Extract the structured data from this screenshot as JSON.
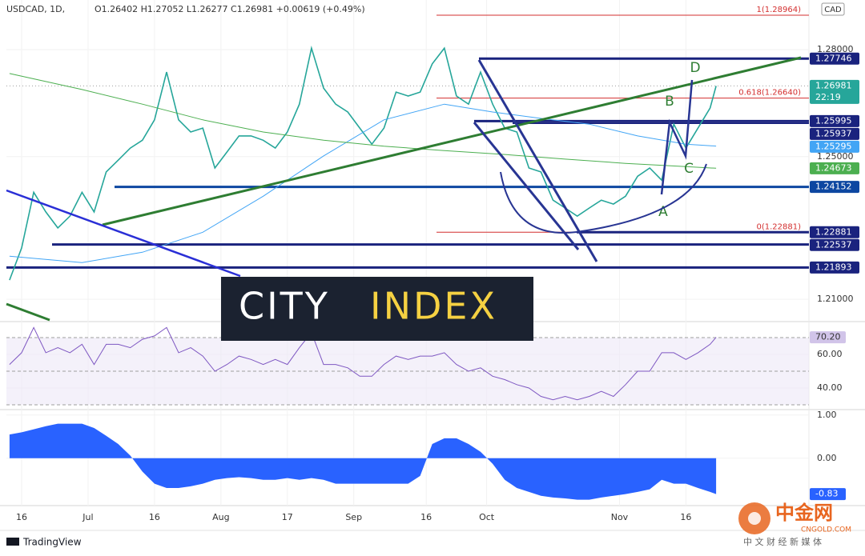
{
  "header": {
    "symbol": "USDCAD, 1D,",
    "ohlc": "O1.26402  H1.27052  L1.26277  C1.26981  +0.00619 (+0.49%)"
  },
  "watermark": {
    "left": "CITY",
    "right": "INDEX"
  },
  "footer": {
    "tradingview": "TradingView"
  },
  "cngold": {
    "name": "中金网",
    "domain": "CNGOLD.COM",
    "tagline": "中 文 财 经 新 媒 体"
  },
  "chart_data": [
    {
      "type": "line",
      "currency": "CAD",
      "countdown": "22:19",
      "ylim": [
        1.2042,
        1.2939
      ],
      "yticks": [
        {
          "value": 1.28,
          "label": "1.28000"
        },
        {
          "value": 1.25,
          "label": "1.25000"
        },
        {
          "value": 1.21,
          "label": "1.21000"
        }
      ],
      "xlim": [
        -2.52,
        130.37
      ],
      "xticks": [
        {
          "value": 0,
          "label": "16"
        },
        {
          "value": 11,
          "label": "Jul"
        },
        {
          "value": 22,
          "label": "16"
        },
        {
          "value": 33,
          "label": "Aug"
        },
        {
          "value": 44,
          "label": "17"
        },
        {
          "value": 55,
          "label": "Sep"
        },
        {
          "value": 67,
          "label": "16"
        },
        {
          "value": 77,
          "label": "Oct"
        },
        {
          "value": 99,
          "label": "Nov"
        },
        {
          "value": 110,
          "label": "16"
        }
      ],
      "x": [
        -2,
        0,
        2,
        4,
        6,
        8,
        10,
        12,
        14,
        16,
        18,
        20,
        22,
        24,
        26,
        28,
        30,
        32,
        34,
        36,
        38,
        40,
        42,
        44,
        46,
        48,
        50,
        52,
        54,
        56,
        58,
        60,
        62,
        64,
        66,
        68,
        70,
        72,
        74,
        76,
        78,
        80,
        82,
        84,
        86,
        88,
        90,
        92,
        94,
        96,
        98,
        100,
        102,
        104,
        106,
        108,
        110,
        112,
        114,
        115
      ],
      "series": [
        {
          "color": "#26a69a",
          "values": [
            1.2154,
            1.2244,
            1.24,
            1.2345,
            1.23,
            1.2333,
            1.24,
            1.2345,
            1.2457,
            1.249,
            1.2524,
            1.2546,
            1.2603,
            1.2737,
            1.2603,
            1.2569,
            1.258,
            1.2468,
            1.2513,
            1.2558,
            1.2558,
            1.2546,
            1.2524,
            1.2569,
            1.2647,
            1.2804,
            1.2692,
            1.2647,
            1.2625,
            1.258,
            1.2535,
            1.258,
            1.2681,
            1.267,
            1.2681,
            1.276,
            1.2804,
            1.267,
            1.2647,
            1.2737,
            1.2647,
            1.258,
            1.2569,
            1.2468,
            1.2457,
            1.2378,
            1.2356,
            1.2333,
            1.2356,
            1.2378,
            1.2367,
            1.2389,
            1.2445,
            1.2468,
            1.2434,
            1.2591,
            1.2524,
            1.258,
            1.2636,
            1.26981
          ]
        },
        {
          "color": "#42a5f5",
          "x": [
            -2,
            10,
            20,
            30,
            40,
            50,
            60,
            70,
            78,
            86,
            94,
            102,
            110,
            115
          ],
          "values": [
            1.2221,
            1.2203,
            1.2232,
            1.2288,
            1.2389,
            1.2502,
            1.2603,
            1.2647,
            1.2625,
            1.2607,
            1.2591,
            1.2558,
            1.2535,
            1.25295
          ]
        },
        {
          "color": "#4caf50",
          "x": [
            -2,
            10,
            20,
            30,
            40,
            50,
            60,
            70,
            80,
            90,
            100,
            110,
            115
          ],
          "values": [
            1.2733,
            1.2688,
            1.2647,
            1.2603,
            1.2569,
            1.2546,
            1.2529,
            1.2517,
            1.2506,
            1.2493,
            1.2481,
            1.2472,
            1.24673
          ]
        }
      ],
      "levels": [
        {
          "value": 1.27746,
          "color": "#1a237e"
        },
        {
          "value": 1.25995,
          "color": "#1a237e"
        },
        {
          "value": 1.25937,
          "color": "#1a237e"
        },
        {
          "value": 1.24152,
          "color": "#0d47a1"
        },
        {
          "value": 1.22881,
          "color": "#1a237e"
        },
        {
          "value": 1.22537,
          "color": "#1a237e"
        },
        {
          "value": 1.21893,
          "color": "#1a237e"
        }
      ],
      "fib": [
        {
          "value": 1.28964,
          "label": "1(1.28964)"
        },
        {
          "value": 1.2664,
          "label": "0.618(1.26640)"
        },
        {
          "value": 1.22881,
          "label": "0(1.22881)"
        }
      ],
      "annotations": [
        "A",
        "B",
        "C",
        "D"
      ]
    },
    {
      "type": "line",
      "color": "#7e57c2",
      "ylim": [
        28.1,
        78.1
      ],
      "yticks": [
        {
          "value": 60,
          "label": "60.00"
        },
        {
          "value": 40,
          "label": "40.00"
        }
      ],
      "band_lines": [
        70,
        50,
        30
      ],
      "x": [
        -2,
        0,
        2,
        4,
        6,
        8,
        10,
        12,
        14,
        16,
        18,
        20,
        22,
        24,
        26,
        28,
        30,
        32,
        34,
        36,
        38,
        40,
        42,
        44,
        46,
        48,
        50,
        52,
        54,
        56,
        58,
        60,
        62,
        64,
        66,
        68,
        70,
        72,
        74,
        76,
        78,
        80,
        82,
        84,
        86,
        88,
        90,
        92,
        94,
        96,
        98,
        100,
        102,
        104,
        106,
        108,
        110,
        112,
        114,
        115
      ],
      "values": [
        54,
        61,
        76,
        61,
        64,
        61,
        66,
        54,
        66,
        66,
        64,
        69,
        71,
        76,
        61,
        64,
        59,
        50,
        54,
        59,
        57,
        54,
        57,
        54,
        64,
        73,
        54,
        54,
        52,
        47,
        47,
        54,
        59,
        57,
        59,
        59,
        61,
        54,
        50,
        52,
        47,
        45,
        42,
        40,
        35,
        33,
        35,
        33,
        35,
        38,
        35,
        42,
        50,
        50,
        61,
        61,
        57,
        61,
        66,
        70.2
      ],
      "value_labels": [
        null,
        null,
        null,
        null,
        null,
        null,
        null,
        null,
        null,
        null,
        null,
        null,
        null,
        null,
        null,
        null,
        null,
        null,
        null,
        null,
        null,
        null,
        null,
        null,
        null,
        null,
        null,
        null,
        null,
        null,
        null,
        null,
        null,
        null,
        null,
        null,
        null,
        null,
        null,
        null,
        null,
        null,
        null,
        null,
        null,
        null,
        null,
        null,
        null,
        null,
        null,
        null,
        null,
        null,
        null,
        null,
        null,
        null,
        null,
        "70.20"
      ]
    },
    {
      "type": "area",
      "color": "#2962ff",
      "ylim": [
        -1.06,
        1.07
      ],
      "yticks": [
        {
          "value": 1,
          "label": "1.00"
        },
        {
          "value": 0,
          "label": "0.00"
        }
      ],
      "x": [
        -2,
        0,
        2,
        4,
        6,
        8,
        10,
        12,
        14,
        16,
        18,
        20,
        22,
        24,
        26,
        28,
        30,
        32,
        34,
        36,
        38,
        40,
        42,
        44,
        46,
        48,
        50,
        52,
        54,
        56,
        58,
        60,
        62,
        64,
        66,
        68,
        70,
        72,
        74,
        76,
        78,
        80,
        82,
        84,
        86,
        88,
        90,
        92,
        94,
        96,
        98,
        100,
        102,
        104,
        106,
        108,
        110,
        112,
        114,
        115
      ],
      "values": [
        0.55,
        0.6,
        0.67,
        0.74,
        0.8,
        0.8,
        0.8,
        0.7,
        0.52,
        0.33,
        0.06,
        -0.31,
        -0.59,
        -0.69,
        -0.69,
        -0.65,
        -0.59,
        -0.5,
        -0.46,
        -0.44,
        -0.46,
        -0.5,
        -0.5,
        -0.46,
        -0.5,
        -0.46,
        -0.5,
        -0.59,
        -0.59,
        -0.59,
        -0.59,
        -0.59,
        -0.59,
        -0.59,
        -0.41,
        0.33,
        0.46,
        0.46,
        0.33,
        0.15,
        -0.13,
        -0.5,
        -0.69,
        -0.78,
        -0.87,
        -0.91,
        -0.93,
        -0.96,
        -0.96,
        -0.91,
        -0.87,
        -0.83,
        -0.78,
        -0.72,
        -0.5,
        -0.59,
        -0.59,
        -0.69,
        -0.78,
        -0.83
      ]
    }
  ]
}
